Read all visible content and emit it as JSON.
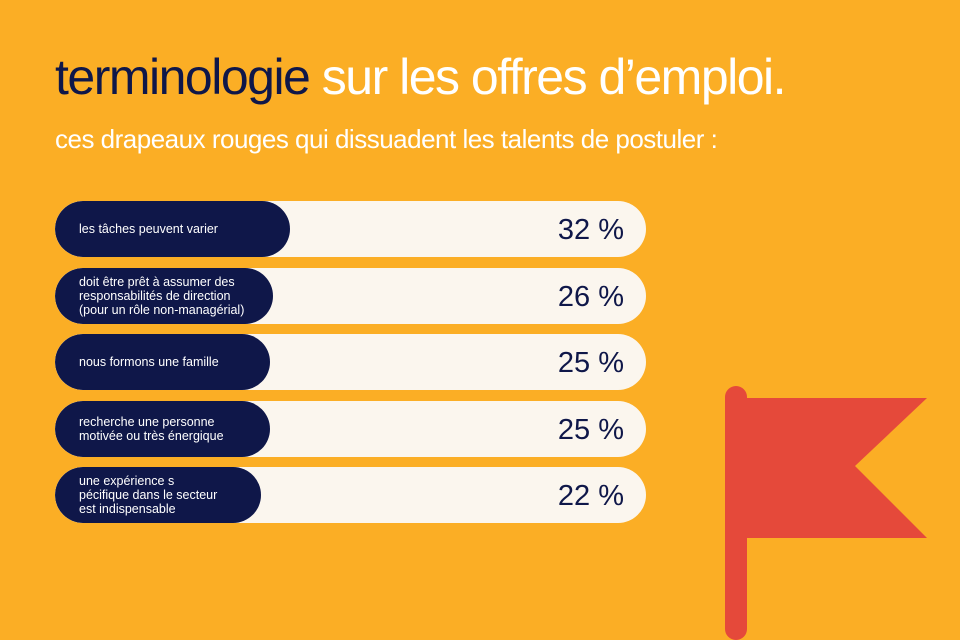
{
  "header": {
    "title_dark": "terminologie",
    "title_light": " sur les offres d’emploi.",
    "subtitle": "ces drapeaux rouges qui dissuadent les talents de postuler :"
  },
  "colors": {
    "background": "#FBAE25",
    "bar_fill": "#0F1749",
    "bar_track": "#FBF6EE",
    "flag": "#E5493A"
  },
  "icon": "red-flag-icon",
  "chart_data": {
    "type": "bar",
    "orientation": "horizontal",
    "categories": [
      "les tâches peuvent varier",
      "doit être prêt à assumer des\nresponsabilités de direction\n(pour un rôle non-managérial)",
      "nous formons une famille",
      "recherche une personne\nmotivée ou très énergique",
      "une expérience s\npécifique dans le secteur\nest indispensable"
    ],
    "values": [
      32,
      26,
      25,
      25,
      22
    ],
    "value_labels": [
      "32 %",
      "26 %",
      "25 %",
      "25 %",
      "22 %"
    ],
    "xlim": [
      0,
      100
    ]
  }
}
